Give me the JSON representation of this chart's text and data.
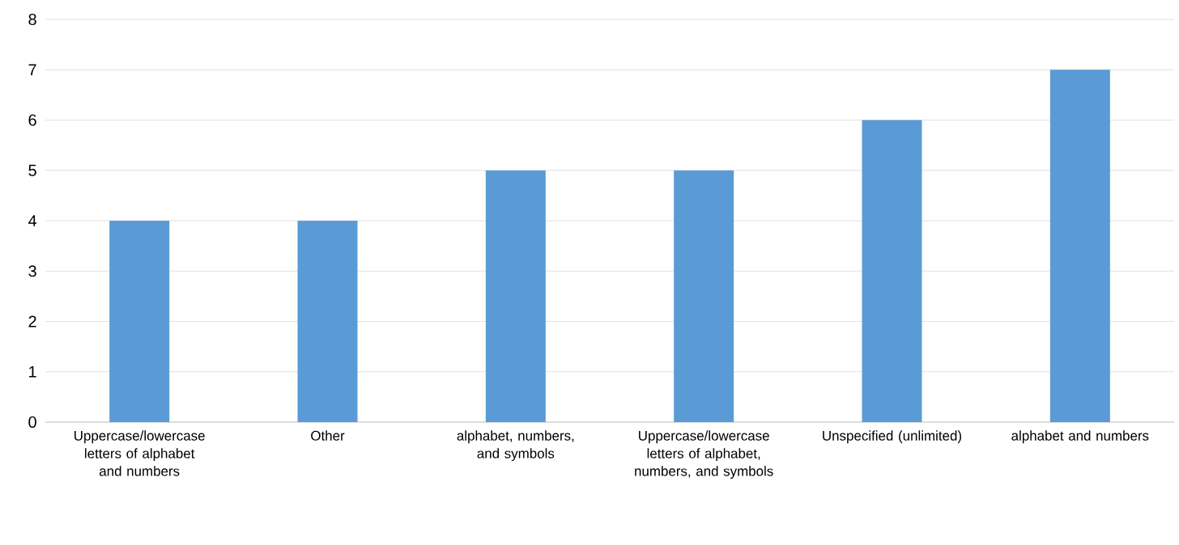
{
  "chart_data": {
    "type": "bar",
    "categories": [
      "Uppercase/lowercase letters of alphabet and numbers",
      "Other",
      "alphabet, numbers, and symbols",
      "Uppercase/lowercase letters of alphabet, numbers, and symbols",
      "Unspecified (unlimited)",
      "alphabet and numbers"
    ],
    "values": [
      4,
      4,
      5,
      5,
      6,
      7
    ],
    "color": "#5b9bd5",
    "ylim": [
      0,
      8
    ],
    "yticks": [
      0,
      1,
      2,
      3,
      4,
      5,
      6,
      7,
      8
    ],
    "grid": "y"
  }
}
